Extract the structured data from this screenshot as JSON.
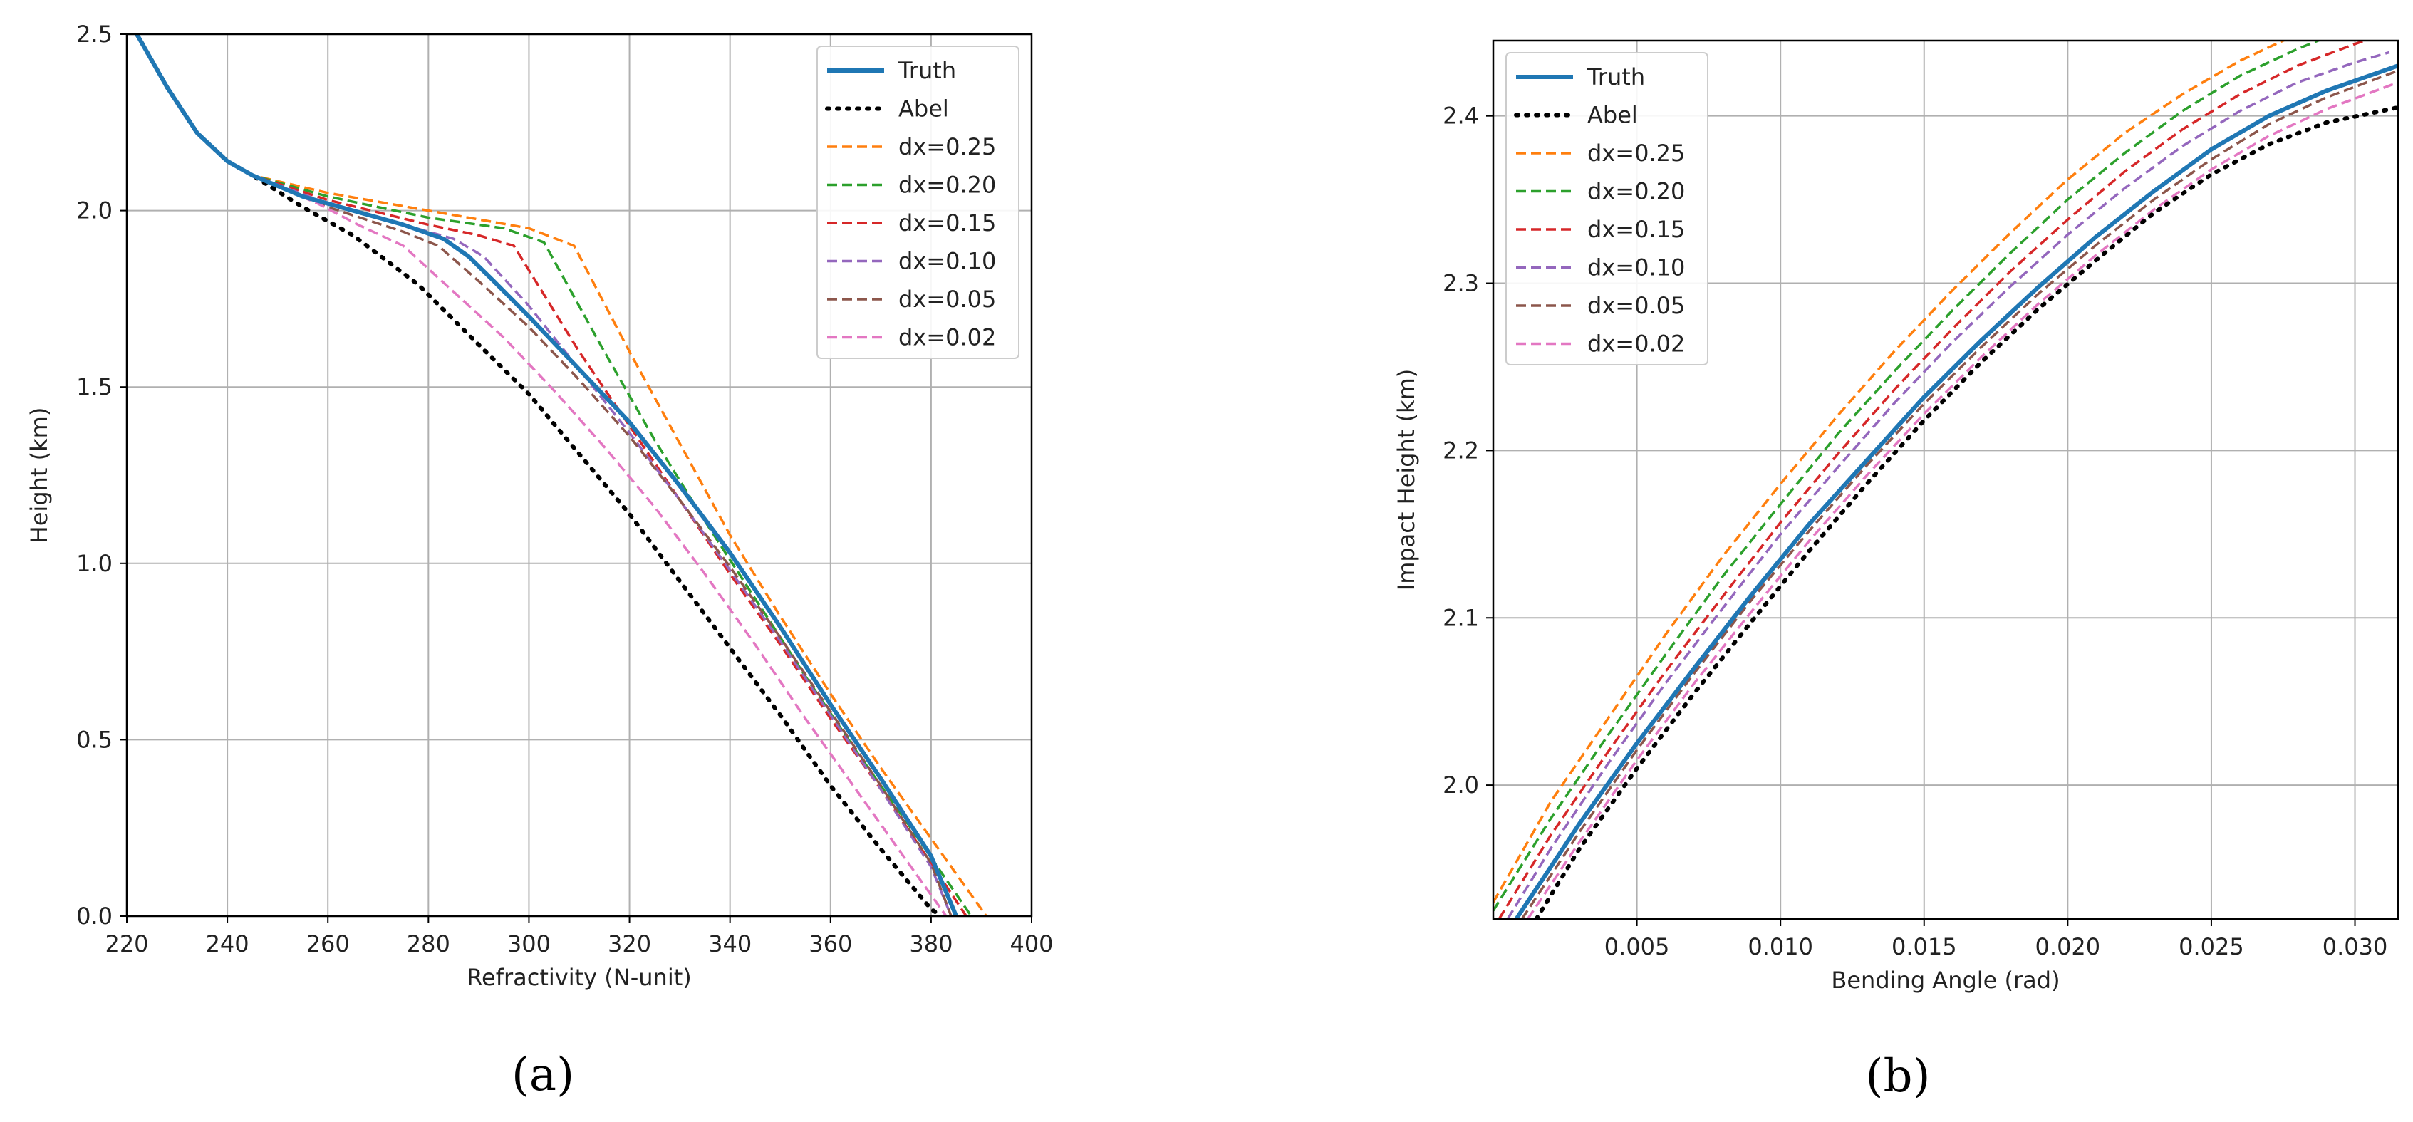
{
  "colors": {
    "Truth": "#1f77b4",
    "Abel": "#000000",
    "dx=0.25": "#ff7f0e",
    "dx=0.20": "#2ca02c",
    "dx=0.15": "#d62728",
    "dx=0.10": "#9467bd",
    "dx=0.05": "#8c564b",
    "dx=0.02": "#e377c2",
    "grid": "#b0b0b0"
  },
  "chart_data": [
    {
      "panel_label": "(a)",
      "type": "line",
      "xlabel": "Refractivity (N-unit)",
      "ylabel": "Height (km)",
      "xlim": [
        220,
        400
      ],
      "ylim": [
        0.0,
        2.5
      ],
      "xticks": [
        220,
        240,
        260,
        280,
        300,
        320,
        340,
        360,
        380,
        400
      ],
      "yticks": [
        0.0,
        0.5,
        1.0,
        1.5,
        2.0,
        2.5
      ],
      "xtick_labels": [
        "220",
        "240",
        "260",
        "280",
        "300",
        "320",
        "340",
        "360",
        "380",
        "400"
      ],
      "ytick_labels": [
        "0.0",
        "0.5",
        "1.0",
        "1.5",
        "2.0",
        "2.5"
      ],
      "grid": true,
      "legend_position": "top-right",
      "series": [
        {
          "name": "Truth",
          "style": "solid",
          "x": [
            222,
            228,
            234,
            240,
            245,
            255,
            265,
            275,
            283,
            288,
            293,
            300,
            310,
            320,
            330,
            340,
            350,
            360,
            370,
            380,
            385
          ],
          "y": [
            2.5,
            2.35,
            2.22,
            2.14,
            2.1,
            2.04,
            2.0,
            1.96,
            1.92,
            1.87,
            1.8,
            1.7,
            1.55,
            1.4,
            1.22,
            1.03,
            0.82,
            0.6,
            0.39,
            0.17,
            0.0
          ]
        },
        {
          "name": "Abel",
          "style": "dotted",
          "x": [
            222,
            228,
            234,
            240,
            245,
            255,
            265,
            278,
            290,
            300,
            310,
            320,
            330,
            340,
            350,
            360,
            370,
            380,
            382
          ],
          "y": [
            2.5,
            2.35,
            2.22,
            2.14,
            2.1,
            2.01,
            1.93,
            1.79,
            1.62,
            1.48,
            1.31,
            1.14,
            0.95,
            0.76,
            0.57,
            0.37,
            0.19,
            0.02,
            0.0
          ]
        },
        {
          "name": "dx=0.25",
          "style": "dashed",
          "x": [
            222,
            228,
            234,
            240,
            245,
            260,
            280,
            300,
            309,
            320,
            330,
            340,
            350,
            360,
            370,
            380,
            391
          ],
          "y": [
            2.5,
            2.35,
            2.22,
            2.14,
            2.1,
            2.05,
            2.0,
            1.95,
            1.9,
            1.6,
            1.34,
            1.08,
            0.85,
            0.63,
            0.42,
            0.22,
            0.0
          ]
        },
        {
          "name": "dx=0.20",
          "style": "dashed",
          "x": [
            222,
            228,
            234,
            240,
            245,
            260,
            280,
            295,
            303,
            315,
            325,
            335,
            345,
            355,
            365,
            375,
            388
          ],
          "y": [
            2.5,
            2.35,
            2.22,
            2.14,
            2.1,
            2.04,
            1.98,
            1.95,
            1.91,
            1.6,
            1.35,
            1.12,
            0.9,
            0.68,
            0.47,
            0.27,
            0.0
          ]
        },
        {
          "name": "dx=0.15",
          "style": "dashed",
          "x": [
            222,
            228,
            234,
            240,
            245,
            260,
            280,
            290,
            297,
            310,
            320,
            330,
            340,
            350,
            360,
            370,
            380,
            387
          ],
          "y": [
            2.5,
            2.35,
            2.22,
            2.14,
            2.1,
            2.03,
            1.96,
            1.93,
            1.9,
            1.6,
            1.39,
            1.18,
            0.97,
            0.77,
            0.56,
            0.36,
            0.15,
            0.0
          ]
        },
        {
          "name": "dx=0.10",
          "style": "dashed",
          "x": [
            222,
            228,
            234,
            240,
            245,
            260,
            275,
            285,
            291,
            300,
            310,
            320,
            330,
            340,
            350,
            360,
            370,
            380,
            384
          ],
          "y": [
            2.5,
            2.35,
            2.22,
            2.14,
            2.1,
            2.02,
            1.96,
            1.92,
            1.87,
            1.73,
            1.55,
            1.37,
            1.18,
            0.98,
            0.78,
            0.57,
            0.36,
            0.14,
            0.0
          ]
        },
        {
          "name": "dx=0.05",
          "style": "dashed",
          "x": [
            222,
            228,
            234,
            240,
            245,
            260,
            275,
            282,
            290,
            300,
            310,
            320,
            330,
            340,
            350,
            360,
            370,
            380,
            384
          ],
          "y": [
            2.5,
            2.35,
            2.22,
            2.14,
            2.1,
            2.01,
            1.94,
            1.9,
            1.8,
            1.67,
            1.52,
            1.36,
            1.18,
            0.99,
            0.79,
            0.58,
            0.37,
            0.15,
            0.0
          ]
        },
        {
          "name": "dx=0.02",
          "style": "dashed",
          "x": [
            222,
            228,
            234,
            240,
            245,
            258,
            266,
            275,
            285,
            295,
            305,
            315,
            325,
            335,
            345,
            355,
            365,
            375,
            383
          ],
          "y": [
            2.5,
            2.35,
            2.22,
            2.14,
            2.1,
            2.02,
            1.96,
            1.9,
            1.77,
            1.64,
            1.49,
            1.33,
            1.16,
            0.97,
            0.77,
            0.56,
            0.36,
            0.16,
            0.0
          ]
        }
      ]
    },
    {
      "panel_label": "(b)",
      "type": "line",
      "xlabel": "Bending Angle (rad)",
      "ylabel": "Impact Height (km)",
      "xlim": [
        0.0,
        0.0315
      ],
      "ylim": [
        1.92,
        2.445
      ],
      "xticks": [
        0.005,
        0.01,
        0.015,
        0.02,
        0.025,
        0.03
      ],
      "yticks": [
        2.0,
        2.1,
        2.2,
        2.3,
        2.4
      ],
      "xtick_labels": [
        "0.005",
        "0.010",
        "0.015",
        "0.020",
        "0.025",
        "0.030"
      ],
      "ytick_labels": [
        "2.0",
        "2.1",
        "2.2",
        "2.3",
        "2.4"
      ],
      "grid": true,
      "legend_position": "top-left",
      "series": [
        {
          "name": "Truth",
          "style": "solid",
          "x": [
            0.0008,
            0.003,
            0.005,
            0.007,
            0.009,
            0.011,
            0.013,
            0.015,
            0.017,
            0.019,
            0.021,
            0.023,
            0.025,
            0.027,
            0.029,
            0.0315
          ],
          "y": [
            1.92,
            1.977,
            2.025,
            2.07,
            2.114,
            2.156,
            2.194,
            2.232,
            2.266,
            2.298,
            2.328,
            2.355,
            2.38,
            2.4,
            2.415,
            2.43
          ]
        },
        {
          "name": "Abel",
          "style": "dotted",
          "x": [
            0.0015,
            0.003,
            0.005,
            0.007,
            0.009,
            0.011,
            0.013,
            0.015,
            0.017,
            0.019,
            0.021,
            0.023,
            0.025,
            0.027,
            0.029,
            0.0315
          ],
          "y": [
            1.92,
            1.962,
            2.01,
            2.055,
            2.098,
            2.14,
            2.18,
            2.218,
            2.253,
            2.285,
            2.314,
            2.342,
            2.365,
            2.383,
            2.396,
            2.405
          ]
        },
        {
          "name": "dx=0.25",
          "style": "dashed",
          "x": [
            0.0,
            0.002,
            0.004,
            0.006,
            0.008,
            0.01,
            0.012,
            0.014,
            0.016,
            0.018,
            0.02,
            0.022,
            0.024,
            0.026,
            0.028
          ],
          "y": [
            1.93,
            1.99,
            2.04,
            2.09,
            2.137,
            2.18,
            2.221,
            2.26,
            2.296,
            2.33,
            2.362,
            2.39,
            2.413,
            2.433,
            2.449
          ]
        },
        {
          "name": "dx=0.20",
          "style": "dashed",
          "x": [
            0.0,
            0.002,
            0.004,
            0.006,
            0.008,
            0.01,
            0.012,
            0.014,
            0.016,
            0.018,
            0.02,
            0.022,
            0.024,
            0.026,
            0.028,
            0.029
          ],
          "y": [
            1.925,
            1.98,
            2.03,
            2.078,
            2.125,
            2.168,
            2.21,
            2.248,
            2.284,
            2.318,
            2.35,
            2.378,
            2.403,
            2.424,
            2.44,
            2.447
          ]
        },
        {
          "name": "dx=0.15",
          "style": "dashed",
          "x": [
            0.0002,
            0.002,
            0.004,
            0.006,
            0.008,
            0.01,
            0.012,
            0.014,
            0.016,
            0.018,
            0.02,
            0.022,
            0.024,
            0.026,
            0.028,
            0.03,
            0.0305
          ],
          "y": [
            1.92,
            1.97,
            2.02,
            2.068,
            2.113,
            2.157,
            2.198,
            2.237,
            2.273,
            2.307,
            2.338,
            2.367,
            2.392,
            2.413,
            2.43,
            2.443,
            2.446
          ]
        },
        {
          "name": "dx=0.10",
          "style": "dashed",
          "x": [
            0.0005,
            0.002,
            0.004,
            0.006,
            0.008,
            0.01,
            0.012,
            0.014,
            0.016,
            0.018,
            0.02,
            0.022,
            0.024,
            0.026,
            0.028,
            0.03,
            0.0312
          ],
          "y": [
            1.92,
            1.962,
            2.013,
            2.061,
            2.106,
            2.15,
            2.19,
            2.229,
            2.265,
            2.298,
            2.329,
            2.357,
            2.382,
            2.403,
            2.42,
            2.432,
            2.438
          ]
        },
        {
          "name": "dx=0.05",
          "style": "dashed",
          "x": [
            0.001,
            0.003,
            0.005,
            0.007,
            0.009,
            0.011,
            0.013,
            0.015,
            0.017,
            0.019,
            0.021,
            0.023,
            0.025,
            0.027,
            0.029,
            0.0315
          ],
          "y": [
            1.92,
            1.972,
            2.021,
            2.067,
            2.111,
            2.152,
            2.191,
            2.228,
            2.262,
            2.294,
            2.323,
            2.35,
            2.374,
            2.395,
            2.411,
            2.427
          ]
        },
        {
          "name": "dx=0.02",
          "style": "dashed",
          "x": [
            0.0012,
            0.003,
            0.005,
            0.007,
            0.009,
            0.011,
            0.013,
            0.015,
            0.017,
            0.019,
            0.021,
            0.023,
            0.025,
            0.027,
            0.029,
            0.0315
          ],
          "y": [
            1.92,
            1.966,
            2.015,
            2.061,
            2.104,
            2.146,
            2.185,
            2.222,
            2.256,
            2.288,
            2.317,
            2.344,
            2.368,
            2.388,
            2.404,
            2.42
          ]
        }
      ]
    }
  ]
}
